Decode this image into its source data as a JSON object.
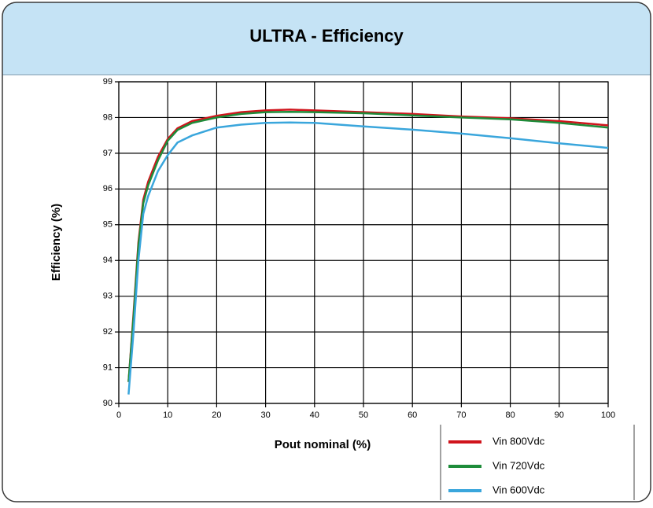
{
  "chart_data": {
    "type": "line",
    "title": "ULTRA - Efficiency",
    "x_label": "Pout nominal (%)",
    "y_label": "Efficiency (%)",
    "x": [
      2,
      3,
      4,
      5,
      6,
      8,
      10,
      12,
      15,
      20,
      25,
      30,
      35,
      40,
      50,
      60,
      70,
      80,
      90,
      100
    ],
    "series": [
      {
        "name": "Vin 800Vdc",
        "color": "#d0141c",
        "values": [
          90.6,
          92.5,
          94.5,
          95.7,
          96.2,
          96.9,
          97.4,
          97.7,
          97.9,
          98.05,
          98.15,
          98.2,
          98.22,
          98.2,
          98.15,
          98.1,
          98.03,
          97.98,
          97.9,
          97.78
        ]
      },
      {
        "name": "Vin 720Vdc",
        "color": "#1e8c3a",
        "values": [
          90.6,
          92.4,
          94.4,
          95.6,
          96.1,
          96.8,
          97.35,
          97.65,
          97.85,
          98.0,
          98.1,
          98.15,
          98.16,
          98.15,
          98.12,
          98.06,
          98.0,
          97.95,
          97.85,
          97.72
        ]
      },
      {
        "name": "Vin 600Vdc",
        "color": "#3aa6dc",
        "values": [
          90.25,
          92.0,
          94.0,
          95.3,
          95.8,
          96.5,
          96.95,
          97.3,
          97.5,
          97.72,
          97.8,
          97.85,
          97.86,
          97.85,
          97.75,
          97.66,
          97.55,
          97.42,
          97.28,
          97.15
        ]
      }
    ],
    "xlim": [
      0,
      100
    ],
    "xticks": [
      0,
      10,
      20,
      30,
      40,
      50,
      60,
      70,
      80,
      90,
      100
    ],
    "ylim": [
      90,
      99
    ],
    "yticks": [
      90,
      91,
      92,
      93,
      94,
      95,
      96,
      97,
      98,
      99
    ],
    "grid": true
  }
}
